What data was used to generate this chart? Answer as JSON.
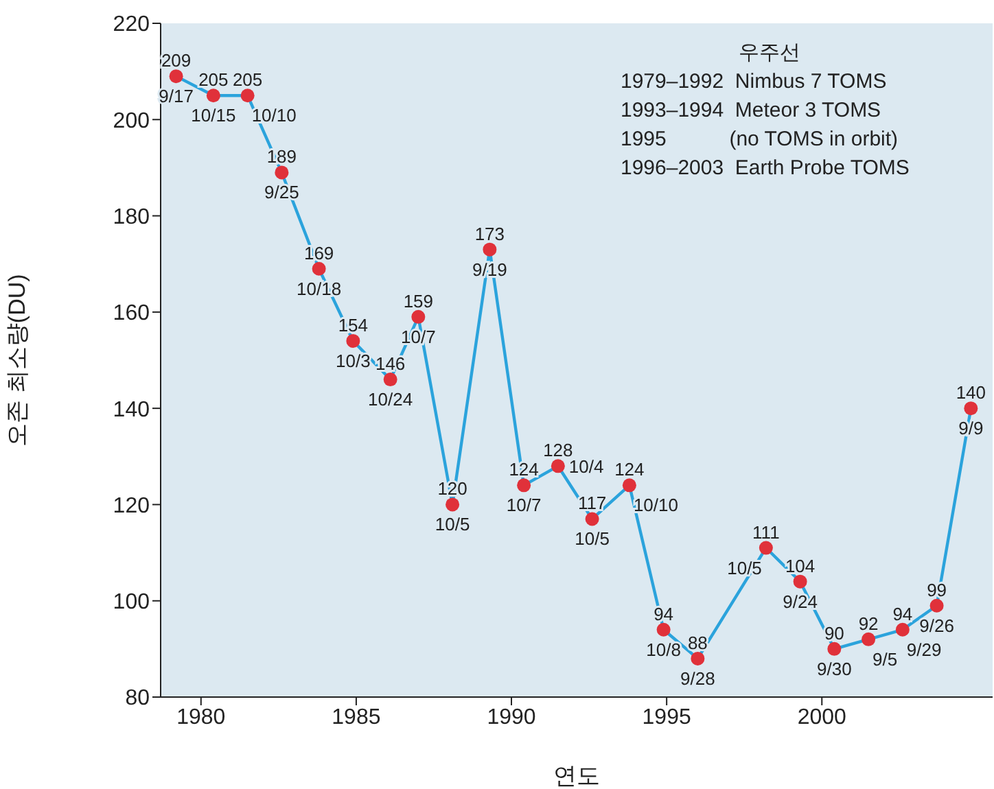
{
  "chart_data": {
    "type": "line",
    "xlabel": "연도",
    "ylabel": "오존 최소량(DU)",
    "x": [
      1979.2,
      1980.4,
      1981.5,
      1982.6,
      1983.8,
      1984.9,
      1986.1,
      1987.0,
      1988.1,
      1989.3,
      1990.4,
      1991.5,
      1992.6,
      1993.8,
      1994.9,
      1996.0,
      1998.2,
      1999.3,
      2000.4,
      2001.5,
      2002.6,
      2003.7,
      2004.8
    ],
    "series": [
      {
        "color": "#2ba3dc",
        "colors": [
          "#e0313a",
          "#e0313a",
          "#e0313a",
          "#e0313a",
          "#e0313a",
          "#e0313a",
          "#e0313a",
          "#e0313a",
          "#e0313a",
          "#e0313a",
          "#e0313a",
          "#e0313a",
          "#e0313a",
          "#e0313a",
          "#e0313a",
          "#e0313a",
          "#e0313a",
          "#e0313a",
          "#e0313a",
          "#e0313a",
          "#e0313a",
          "#e0313a",
          "#e0313a"
        ],
        "values": [
          209,
          205,
          205,
          189,
          169,
          154,
          146,
          159,
          120,
          173,
          124,
          128,
          117,
          124,
          94,
          88,
          111,
          104,
          90,
          92,
          94,
          99,
          140
        ]
      }
    ],
    "marker": "circle",
    "data_labels": true,
    "grid": false,
    "legend": false,
    "xlim": [
      1978.7,
      2005.5
    ],
    "xticks": [
      1980,
      1985,
      1990,
      1995,
      2000
    ],
    "ylim": [
      80,
      220
    ],
    "yticks": [
      80,
      100,
      120,
      140,
      160,
      180,
      200,
      220
    ],
    "annotations": [
      {
        "text": "9/17",
        "x": 1979.2,
        "y": 209
      },
      {
        "text": "10/15",
        "x": 1980.4,
        "y": 205
      },
      {
        "text": "10/10",
        "x": 1981.5,
        "y": 205
      },
      {
        "text": "9/25",
        "x": 1982.6,
        "y": 189
      },
      {
        "text": "10/18",
        "x": 1983.8,
        "y": 169
      },
      {
        "text": "10/3",
        "x": 1984.9,
        "y": 154
      },
      {
        "text": "10/24",
        "x": 1986.1,
        "y": 146
      },
      {
        "text": "10/7",
        "x": 1987.0,
        "y": 159
      },
      {
        "text": "10/5",
        "x": 1988.1,
        "y": 120
      },
      {
        "text": "9/19",
        "x": 1989.3,
        "y": 173
      },
      {
        "text": "10/7",
        "x": 1990.4,
        "y": 124
      },
      {
        "text": "10/4",
        "x": 1991.5,
        "y": 128
      },
      {
        "text": "10/5",
        "x": 1992.6,
        "y": 117
      },
      {
        "text": "10/10",
        "x": 1993.8,
        "y": 124
      },
      {
        "text": "10/8",
        "x": 1994.9,
        "y": 94
      },
      {
        "text": "9/28",
        "x": 1996.0,
        "y": 88
      },
      {
        "text": "10/5",
        "x": 1998.2,
        "y": 111
      },
      {
        "text": "9/24",
        "x": 1999.3,
        "y": 104
      },
      {
        "text": "9/30",
        "x": 2000.4,
        "y": 90
      },
      {
        "text": "9/5",
        "x": 2001.5,
        "y": 92
      },
      {
        "text": "9/29",
        "x": 2002.6,
        "y": 94
      },
      {
        "text": "9/26",
        "x": 2003.7,
        "y": 99
      },
      {
        "text": "9/9",
        "x": 2004.8,
        "y": 140
      },
      "우주선",
      "1979–1992  Nimbus 7 TOMS",
      "1993–1994  Meteor 3 TOMS",
      "1995           (no TOMS in orbit)",
      "1996–2003  Earth Probe TOMS"
    ]
  }
}
